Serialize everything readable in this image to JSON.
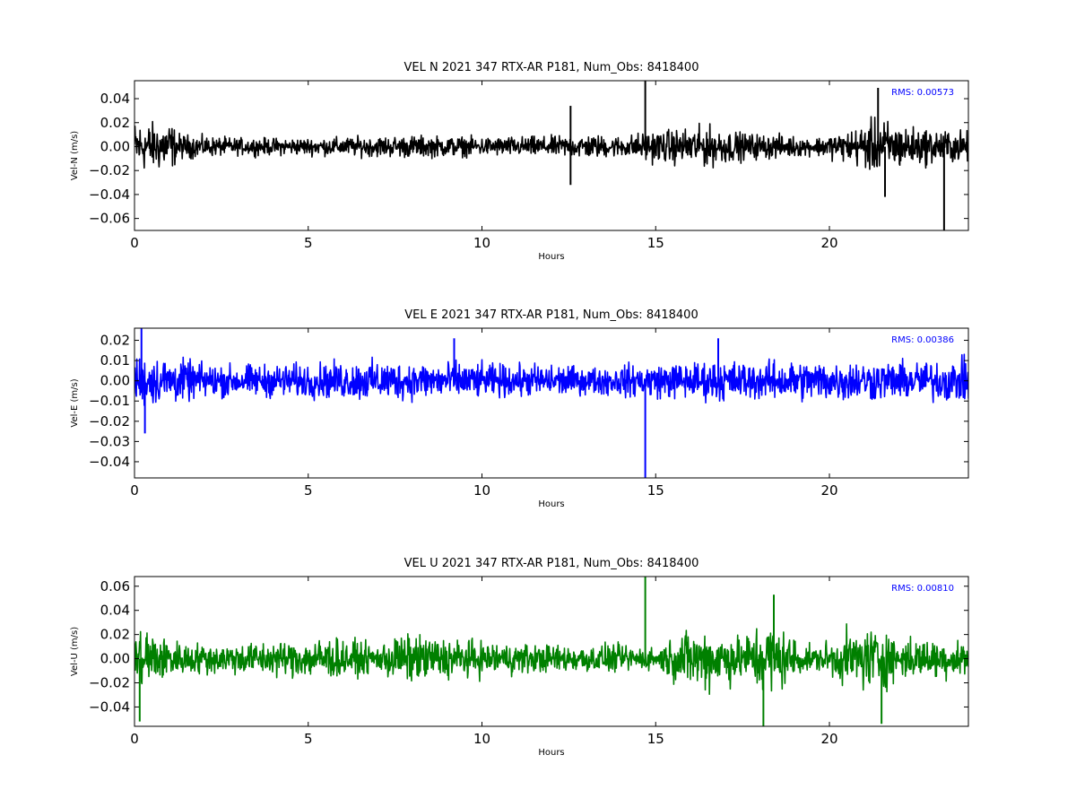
{
  "chart_data": [
    {
      "type": "line",
      "title": "VEL N 2021 347 RTX-AR  P181, Num_Obs: 8418400",
      "xlabel": "Hours",
      "ylabel": "Vel-N (m/s)",
      "xlim": [
        0,
        24
      ],
      "ylim": [
        -0.07,
        0.055
      ],
      "xticks": [
        0,
        5,
        10,
        15,
        20
      ],
      "xtick_labels": [
        "0",
        "5",
        "10",
        "15",
        "20"
      ],
      "yticks": [
        0.04,
        0.02,
        0.0,
        -0.02,
        -0.04,
        -0.06
      ],
      "ytick_labels": [
        "0.04",
        "0.02",
        "0.00",
        "−0.02",
        "−0.04",
        "−0.06"
      ],
      "annotation": "RMS:  0.00573",
      "annotation_color": "#0000ff",
      "series": [
        {
          "color": "#000000",
          "envelope": {
            "x": [
              0,
              0.5,
              1.0,
              1.3,
              2,
              3,
              5,
              7,
              8,
              9,
              10,
              12,
              13,
              14,
              14.8,
              15.5,
              16.5,
              17.5,
              18.5,
              19.5,
              20.5,
              21.0,
              21.4,
              21.8,
              22.5,
              23.2,
              24
            ],
            "amp": [
              0.03,
              0.028,
              0.03,
              0.015,
              0.012,
              0.01,
              0.01,
              0.012,
              0.013,
              0.012,
              0.011,
              0.012,
              0.014,
              0.012,
              0.018,
              0.02,
              0.024,
              0.016,
              0.014,
              0.01,
              0.018,
              0.026,
              0.034,
              0.028,
              0.022,
              0.02,
              0.018
            ]
          },
          "spikes": [
            {
              "x": 12.55,
              "y": 0.034
            },
            {
              "x": 12.55,
              "y": -0.032
            },
            {
              "x": 14.7,
              "y": 0.055
            },
            {
              "x": 21.4,
              "y": 0.049
            },
            {
              "x": 21.6,
              "y": -0.042
            },
            {
              "x": 23.3,
              "y": -0.07
            }
          ]
        }
      ]
    },
    {
      "type": "line",
      "title": "VEL E 2021 347 RTX-AR  P181, Num_Obs: 8418400",
      "xlabel": "Hours",
      "ylabel": "Vel-E (m/s)",
      "xlim": [
        0,
        24
      ],
      "ylim": [
        -0.048,
        0.026
      ],
      "xticks": [
        0,
        5,
        10,
        15,
        20
      ],
      "xtick_labels": [
        "0",
        "5",
        "10",
        "15",
        "20"
      ],
      "yticks": [
        0.02,
        0.01,
        0.0,
        -0.01,
        -0.02,
        -0.03,
        -0.04
      ],
      "ytick_labels": [
        "0.02",
        "0.01",
        "0.00",
        "−0.01",
        "−0.02",
        "−0.03",
        "−0.04"
      ],
      "annotation": "RMS:  0.00386",
      "annotation_color": "#0000ff",
      "series": [
        {
          "color": "#0000ff",
          "envelope": {
            "x": [
              0,
              0.5,
              1,
              2,
              3,
              5,
              7,
              8,
              9,
              10,
              11,
              12,
              13,
              14,
              15,
              16,
              17,
              18,
              19,
              20,
              21,
              22,
              23,
              24
            ],
            "amp": [
              0.018,
              0.017,
              0.016,
              0.012,
              0.011,
              0.012,
              0.014,
              0.013,
              0.013,
              0.012,
              0.011,
              0.012,
              0.009,
              0.011,
              0.012,
              0.013,
              0.014,
              0.013,
              0.014,
              0.014,
              0.014,
              0.013,
              0.014,
              0.015
            ]
          },
          "spikes": [
            {
              "x": 0.2,
              "y": 0.026
            },
            {
              "x": 0.3,
              "y": -0.026
            },
            {
              "x": 9.2,
              "y": 0.021
            },
            {
              "x": 14.7,
              "y": -0.048
            },
            {
              "x": 16.8,
              "y": 0.021
            }
          ]
        }
      ]
    },
    {
      "type": "line",
      "title": "VEL U 2021 347 RTX-AR  P181, Num_Obs: 8418400",
      "xlabel": "Hours",
      "ylabel": "Vel-U (m/s)",
      "xlim": [
        0,
        24
      ],
      "ylim": [
        -0.056,
        0.068
      ],
      "xticks": [
        0,
        5,
        10,
        15,
        20
      ],
      "xtick_labels": [
        "0",
        "5",
        "10",
        "15",
        "20"
      ],
      "yticks": [
        0.06,
        0.04,
        0.02,
        0.0,
        -0.02,
        -0.04
      ],
      "ytick_labels": [
        "0.06",
        "0.04",
        "0.02",
        "0.00",
        "−0.02",
        "−0.04"
      ],
      "annotation": "RMS:  0.00810",
      "annotation_color": "#0000ff",
      "series": [
        {
          "color": "#008000",
          "envelope": {
            "x": [
              0,
              0.3,
              0.8,
              1.5,
              3,
              5,
              5.5,
              7,
              7.5,
              8.5,
              10,
              12,
              14,
              15,
              15.8,
              16.5,
              17.5,
              18.2,
              18.8,
              19.5,
              20.5,
              21.3,
              22,
              23,
              24
            ],
            "amp": [
              0.035,
              0.04,
              0.025,
              0.018,
              0.018,
              0.022,
              0.026,
              0.015,
              0.028,
              0.026,
              0.02,
              0.016,
              0.016,
              0.012,
              0.032,
              0.036,
              0.026,
              0.046,
              0.03,
              0.012,
              0.03,
              0.04,
              0.024,
              0.022,
              0.022
            ]
          },
          "spikes": [
            {
              "x": 0.15,
              "y": -0.052
            },
            {
              "x": 14.7,
              "y": 0.068
            },
            {
              "x": 18.1,
              "y": -0.056
            },
            {
              "x": 18.4,
              "y": 0.053
            },
            {
              "x": 21.5,
              "y": -0.054
            }
          ]
        }
      ]
    }
  ]
}
